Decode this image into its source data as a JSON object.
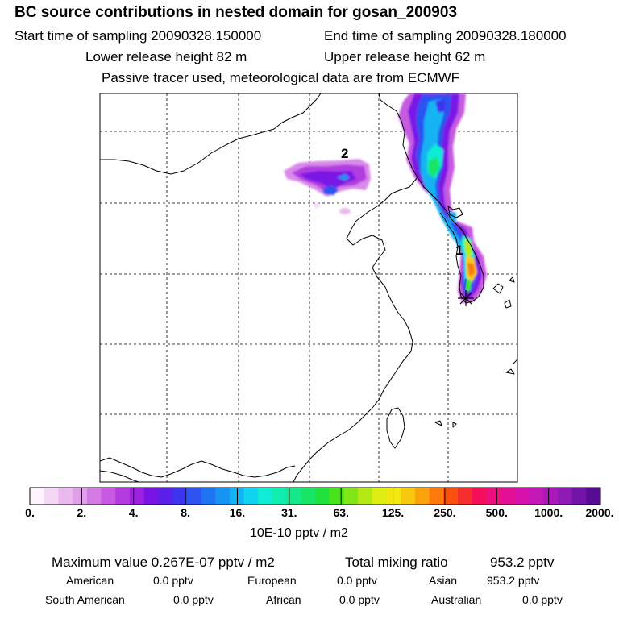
{
  "header": {
    "title": "BC  source contributions in nested domain for gosan_200903",
    "start_label": "Start time of sampling 20090328.150000",
    "end_label": "End time of sampling 20090328.180000",
    "lower_label": "Lower release height   82 m",
    "upper_label": "Upper release height   62 m",
    "tracer_label": "Passive tracer used, meteorological data are from ECMWF"
  },
  "map": {
    "labels": {
      "source1": "1",
      "source2": "2"
    },
    "receptor": "gosan"
  },
  "colorbar": {
    "colors": [
      "#fdf4fd",
      "#f4d6f5",
      "#ebb9ef",
      "#e29fe9",
      "#d57be3",
      "#c65ae0",
      "#b23cdf",
      "#9d22e0",
      "#7a14e6",
      "#5a1fea",
      "#3d35ee",
      "#2c53f0",
      "#1f73f2",
      "#1693f3",
      "#12b3f3",
      "#10d3f0",
      "#10ecd6",
      "#12ecb0",
      "#14e98a",
      "#17e565",
      "#1fe23c",
      "#49e21c",
      "#80e618",
      "#b3ea14",
      "#dfee12",
      "#f2e70f",
      "#f9c70d",
      "#fba20c",
      "#fb7a0b",
      "#fa500d",
      "#f72e2e",
      "#f50f5a",
      "#ee0f7e",
      "#e30f97",
      "#d512a9",
      "#c318b5",
      "#ab1ab8",
      "#901ab4",
      "#7413a8",
      "#560c92"
    ],
    "ticks": [
      "0.",
      "2.",
      "4.",
      "8.",
      "16.",
      "31.",
      "63.",
      "125.",
      "250.",
      "500.",
      "1000.",
      "2000."
    ],
    "units": "10E-10 pptv / m2"
  },
  "stats": {
    "maximum": "Maximum value  0.267E-07 pptv / m2",
    "total": "Total mixing ratio",
    "total_value": "953.2 pptv",
    "rows": [
      [
        {
          "label": "American",
          "value": "0.0 pptv"
        },
        {
          "label": "European",
          "value": "0.0 pptv"
        },
        {
          "label": "Asian",
          "value": "953.2 pptv"
        }
      ],
      [
        {
          "label": "South American",
          "value": "0.0 pptv"
        },
        {
          "label": "African",
          "value": "0.0 pptv"
        },
        {
          "label": "Australian",
          "value": "0.0 pptv"
        }
      ]
    ]
  }
}
